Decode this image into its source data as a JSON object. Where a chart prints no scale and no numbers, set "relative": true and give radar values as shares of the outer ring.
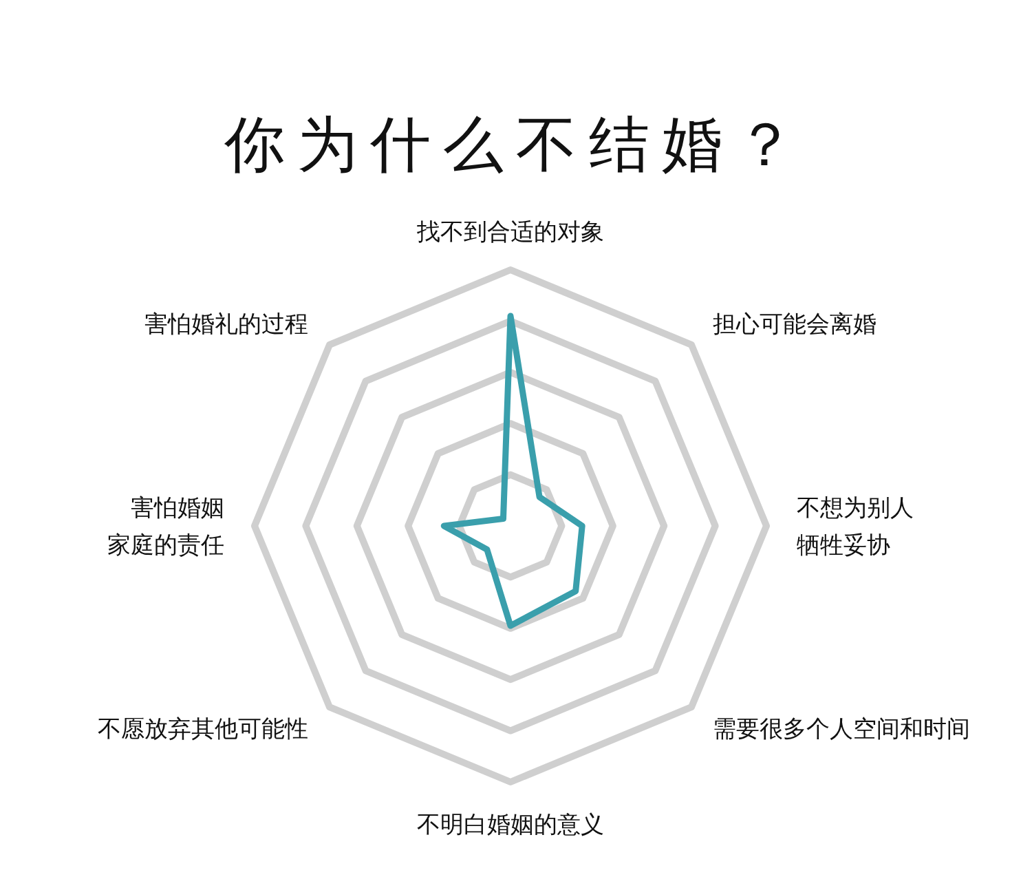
{
  "chart_data": {
    "type": "radar",
    "title": "你为什么不结婚？",
    "categories": [
      "找不到合适的对象",
      "担心可能会离婚",
      "不想为别人牺牲妥协",
      "需要很多个人空间和时间",
      "不明白婚姻的意义",
      "不愿放弃其他可能性",
      "害怕婚姻家庭的责任",
      "害怕婚礼的过程"
    ],
    "series": [
      {
        "color": "#3a9fac",
        "values": [
          0.82,
          0.16,
          0.28,
          0.36,
          0.39,
          0.13,
          0.26,
          0.04
        ]
      }
    ],
    "relative": true,
    "grid": true
  }
}
